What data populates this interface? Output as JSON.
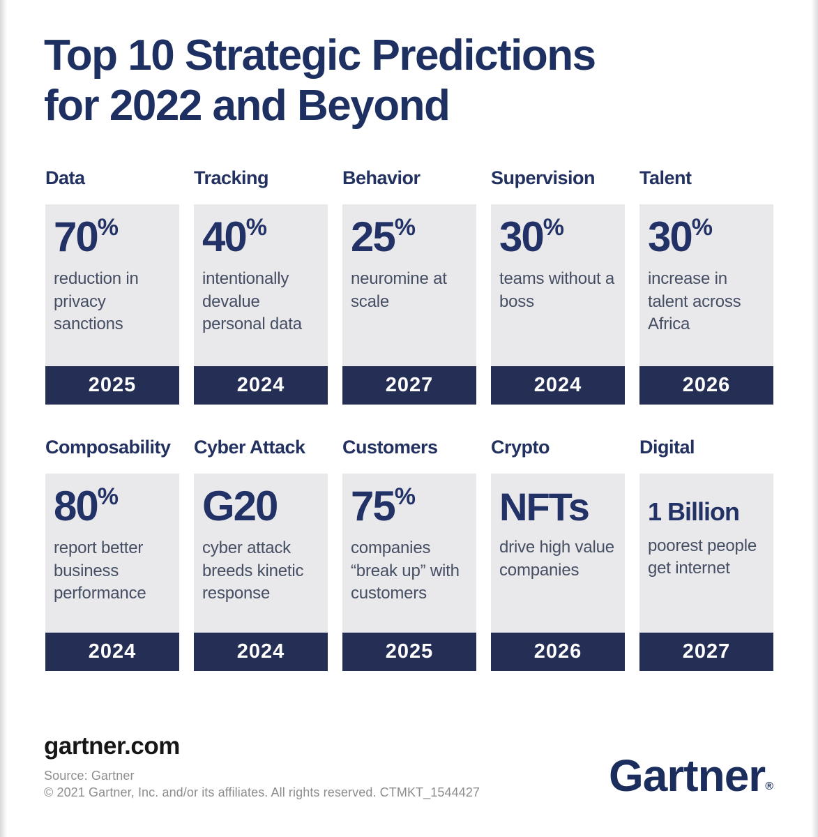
{
  "title": {
    "line1": "Top 10 Strategic Predictions",
    "line2": "for 2022 and Beyond"
  },
  "cards": [
    {
      "category": "Data",
      "stat": "70",
      "stat_suffix": "%",
      "description": "reduction in privacy sanctions",
      "year": "2025"
    },
    {
      "category": "Tracking",
      "stat": "40",
      "stat_suffix": "%",
      "description": "intentionally devalue personal data",
      "year": "2024"
    },
    {
      "category": "Behavior",
      "stat": "25",
      "stat_suffix": "%",
      "description": "neuromine at scale",
      "year": "2027"
    },
    {
      "category": "Supervision",
      "stat": "30",
      "stat_suffix": "%",
      "description": "teams without a boss",
      "year": "2024"
    },
    {
      "category": "Talent",
      "stat": "30",
      "stat_suffix": "%",
      "description": "increase in talent across Africa",
      "year": "2026"
    },
    {
      "category": "Composability",
      "stat": "80",
      "stat_suffix": "%",
      "description": "report better business performance",
      "year": "2024"
    },
    {
      "category": "Cyber Attack",
      "stat": "G20",
      "stat_suffix": "",
      "description": "cyber attack breeds kinetic response",
      "year": "2024"
    },
    {
      "category": "Customers",
      "stat": "75",
      "stat_suffix": "%",
      "description": "companies “break up” with customers",
      "year": "2025"
    },
    {
      "category": "Crypto",
      "stat": "NFTs",
      "stat_suffix": "",
      "description": "drive high value companies",
      "year": "2026"
    },
    {
      "category": "Digital",
      "stat": "1 Billion",
      "stat_suffix": "",
      "description": "poorest people get internet",
      "year": "2027"
    }
  ],
  "footer": {
    "website": "gartner.com",
    "source": "Source: Gartner",
    "copyright": "© 2021 Gartner, Inc. and/or its affiliates. All rights reserved. CTMKT_1544427",
    "logo": "Gartner",
    "logo_registered": "®"
  },
  "colors": {
    "navy_text": "#22315f",
    "stat_navy": "#233266",
    "year_bar": "#252e55",
    "card_background": "#e9e9eb",
    "description_text": "#454e63",
    "footer_gray": "#8d8d8d",
    "logo_navy": "#1b2d5c"
  }
}
